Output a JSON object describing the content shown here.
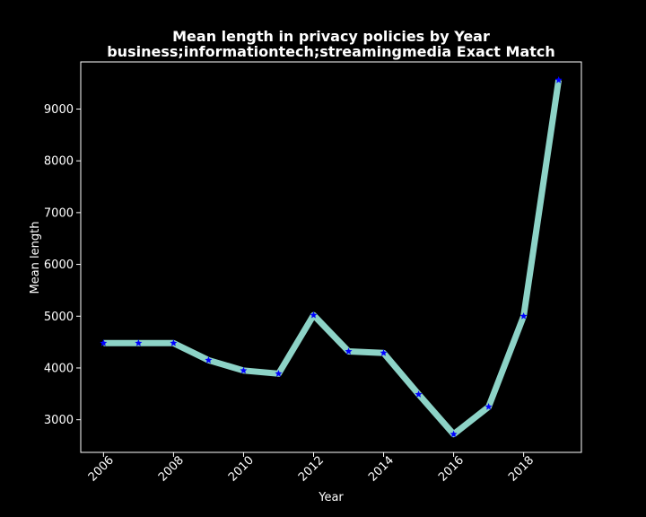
{
  "chart_data": {
    "type": "line",
    "title": "Mean length in privacy policies by Year",
    "subtitle": "business;informationtech;streamingmedia Exact Match",
    "xlabel": "Year",
    "ylabel": "Mean length",
    "x": [
      2006,
      2007,
      2008,
      2009,
      2010,
      2011,
      2012,
      2013,
      2014,
      2015,
      2016,
      2017,
      2018,
      2019
    ],
    "values": [
      4480,
      4480,
      4480,
      4150,
      3950,
      3890,
      5020,
      4320,
      4290,
      3490,
      2720,
      3250,
      5000,
      9560
    ],
    "xticks": [
      2006,
      2008,
      2010,
      2012,
      2014,
      2016,
      2018
    ],
    "yticks": [
      3000,
      4000,
      5000,
      6000,
      7000,
      8000,
      9000
    ],
    "xlim": [
      2005.35,
      2019.65
    ],
    "ylim": [
      2370,
      9910
    ],
    "grid": false,
    "line_color": "#8dd3c7",
    "marker_color": "#0000ff",
    "marker": "star",
    "background": "#000000"
  }
}
